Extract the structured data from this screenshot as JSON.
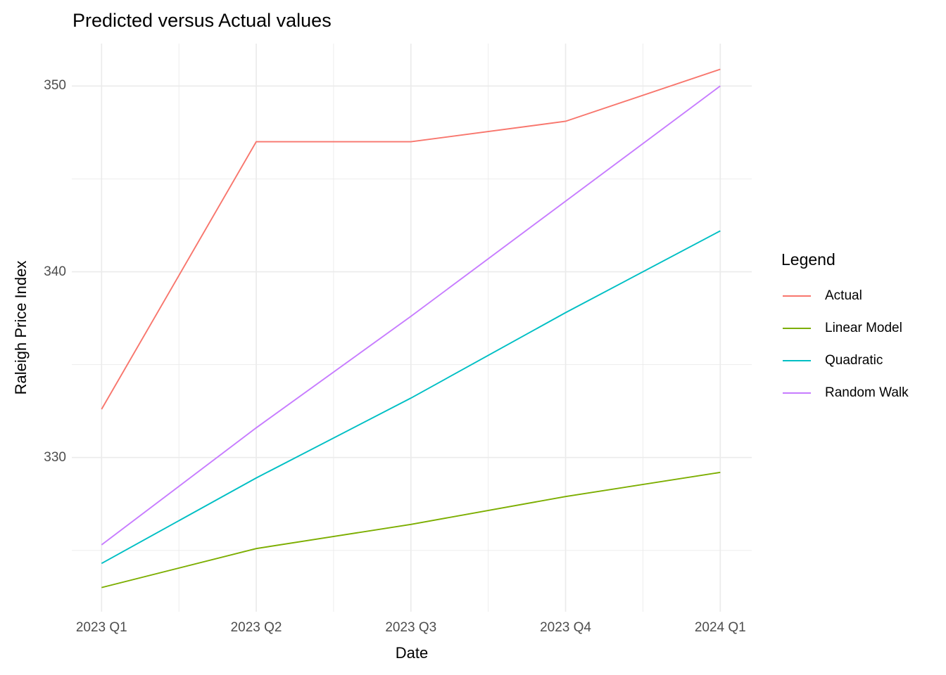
{
  "title": "Predicted versus Actual values",
  "axes": {
    "x": {
      "label": "Date",
      "ticks": [
        "2023 Q1",
        "2023 Q2",
        "2023 Q3",
        "2023 Q4",
        "2024 Q1"
      ]
    },
    "y": {
      "label": "Raleigh Price Index",
      "ticks": [
        330,
        340,
        350
      ]
    }
  },
  "legend": {
    "title": "Legend",
    "items": [
      {
        "label": "Actual",
        "color": "#F8766D"
      },
      {
        "label": "Linear Model",
        "color": "#7CAE00"
      },
      {
        "label": "Quadratic",
        "color": "#00BFC4"
      },
      {
        "label": "Random Walk",
        "color": "#C77CFF"
      }
    ]
  },
  "colors": {
    "gridline": "#EBEBEB",
    "tick_text": "#4d4d4d",
    "background": "#ffffff"
  },
  "chart_data": {
    "type": "line",
    "title": "Predicted versus Actual values",
    "xlabel": "Date",
    "ylabel": "Raleigh Price Index",
    "x": [
      "2023 Q1",
      "2023 Q2",
      "2023 Q3",
      "2023 Q4",
      "2024 Q1"
    ],
    "series": [
      {
        "name": "Actual",
        "color": "#F8766D",
        "values": [
          332.6,
          347.0,
          347.0,
          348.1,
          350.9
        ]
      },
      {
        "name": "Linear Model",
        "color": "#7CAE00",
        "values": [
          323.0,
          325.1,
          326.4,
          327.9,
          329.2
        ]
      },
      {
        "name": "Quadratic",
        "color": "#00BFC4",
        "values": [
          324.3,
          328.9,
          333.2,
          337.8,
          342.2
        ]
      },
      {
        "name": "Random Walk",
        "color": "#C77CFF",
        "values": [
          325.3,
          331.6,
          337.6,
          343.8,
          350.0
        ]
      }
    ],
    "ylim": [
      321.7,
      352.3
    ],
    "y_major_gridlines": [
      330,
      340,
      350
    ],
    "y_minor_gridlines": [
      325,
      335,
      345
    ],
    "x_minor_gridlines_between_ticks": true,
    "grid": true,
    "legend_position": "right"
  }
}
